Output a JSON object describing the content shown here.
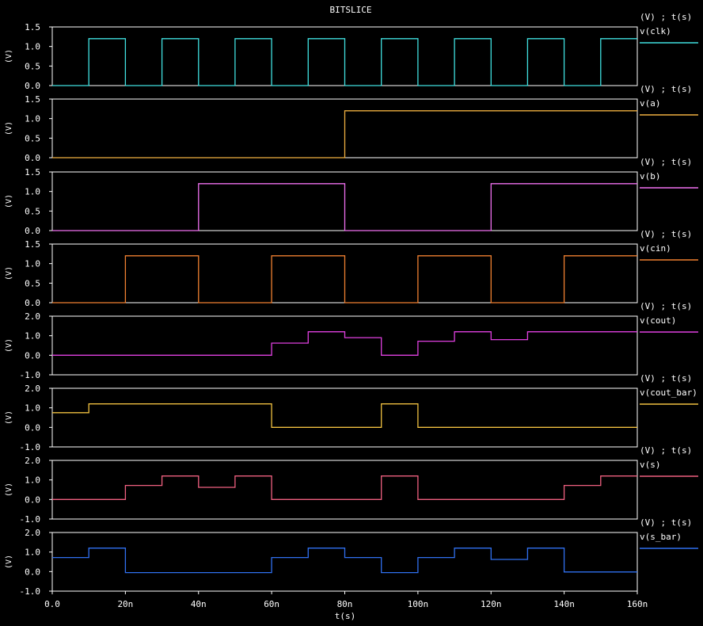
{
  "title": "BITSLICE",
  "x_axis_label": "t(s)",
  "chart_data": {
    "type": "line",
    "title": "BITSLICE",
    "xlabel": "t(s)",
    "xlim": [
      0,
      160
    ],
    "x_ticks": [
      0,
      20,
      40,
      60,
      80,
      100,
      120,
      140,
      160
    ],
    "x_tick_labels": [
      "0.0",
      "20n",
      "40n",
      "60n",
      "80n",
      "100n",
      "120n",
      "140n",
      "160n"
    ],
    "grid": false,
    "legend_position": "right",
    "panels": [
      {
        "name": "v(clk)",
        "color": "#40e0e0",
        "units": "(V) ; t(s)",
        "ylabel": "(V)",
        "ylim": [
          0,
          1.5
        ],
        "yticks": [
          0,
          0.5,
          1.0,
          1.5
        ],
        "ytick_labels": [
          "0.0",
          "0.5",
          "1.0",
          "1.5"
        ],
        "x": [
          0,
          10,
          10,
          20,
          20,
          30,
          30,
          40,
          40,
          50,
          50,
          60,
          60,
          70,
          70,
          80,
          80,
          90,
          90,
          100,
          100,
          110,
          110,
          120,
          120,
          130,
          130,
          140,
          140,
          150,
          150,
          160
        ],
        "y": [
          0,
          0,
          1.2,
          1.2,
          0,
          0,
          1.2,
          1.2,
          0,
          0,
          1.2,
          1.2,
          0,
          0,
          1.2,
          1.2,
          0,
          0,
          1.2,
          1.2,
          0,
          0,
          1.2,
          1.2,
          0,
          0,
          1.2,
          1.2,
          0,
          0,
          1.2,
          1.2
        ]
      },
      {
        "name": "v(a)",
        "color": "#f0b040",
        "units": "(V) ; t(s)",
        "ylabel": "(V)",
        "ylim": [
          0,
          1.5
        ],
        "yticks": [
          0,
          0.5,
          1.0,
          1.5
        ],
        "ytick_labels": [
          "0.0",
          "0.5",
          "1.0",
          "1.5"
        ],
        "x": [
          0,
          80,
          80,
          160
        ],
        "y": [
          0,
          0,
          1.2,
          1.2
        ]
      },
      {
        "name": "v(b)",
        "color": "#f070f0",
        "units": "(V) ; t(s)",
        "ylabel": "(V)",
        "ylim": [
          0,
          1.5
        ],
        "yticks": [
          0,
          0.5,
          1.0,
          1.5
        ],
        "ytick_labels": [
          "0.0",
          "0.5",
          "1.0",
          "1.5"
        ],
        "x": [
          0,
          40,
          40,
          80,
          80,
          120,
          120,
          160
        ],
        "y": [
          0,
          0,
          1.2,
          1.2,
          0,
          0,
          1.2,
          1.2
        ]
      },
      {
        "name": "v(cin)",
        "color": "#f08030",
        "units": "(V) ; t(s)",
        "ylabel": "(V)",
        "ylim": [
          0,
          1.5
        ],
        "yticks": [
          0,
          0.5,
          1.0,
          1.5
        ],
        "ytick_labels": [
          "0.0",
          "0.5",
          "1.0",
          "1.5"
        ],
        "x": [
          0,
          20,
          20,
          40,
          40,
          60,
          60,
          80,
          80,
          100,
          100,
          120,
          120,
          140,
          140,
          160
        ],
        "y": [
          0,
          0,
          1.2,
          1.2,
          0,
          0,
          1.2,
          1.2,
          0,
          0,
          1.2,
          1.2,
          0,
          0,
          1.2,
          1.2
        ]
      },
      {
        "name": "v(cout)",
        "color": "#e040e0",
        "units": "(V) ; t(s)",
        "ylabel": "(V)",
        "ylim": [
          -1,
          2
        ],
        "yticks": [
          -1,
          0,
          1,
          2
        ],
        "ytick_labels": [
          "-1.0",
          "0.0",
          "1.0",
          "2.0"
        ],
        "x": [
          0,
          60,
          60,
          70,
          70,
          80,
          80,
          90,
          90,
          100,
          100,
          110,
          110,
          120,
          120,
          130,
          130,
          160
        ],
        "y": [
          0,
          0,
          0.62,
          0.62,
          1.2,
          1.2,
          0.9,
          0.9,
          0,
          0,
          0.72,
          0.72,
          1.2,
          1.2,
          0.8,
          0.8,
          1.2,
          1.2
        ]
      },
      {
        "name": "v(cout_bar)",
        "color": "#f0c040",
        "units": "(V) ; t(s)",
        "ylabel": "(V)",
        "ylim": [
          -1,
          2
        ],
        "yticks": [
          -1,
          0,
          1,
          2
        ],
        "ytick_labels": [
          "-1.0",
          "0.0",
          "1.0",
          "2.0"
        ],
        "x": [
          0,
          10,
          10,
          60,
          60,
          90,
          90,
          100,
          100,
          160
        ],
        "y": [
          0.75,
          0.75,
          1.2,
          1.2,
          0,
          0,
          1.2,
          1.2,
          0,
          0
        ]
      },
      {
        "name": "v(s)",
        "color": "#f06080",
        "units": "(V) ; t(s)",
        "ylabel": "(V)",
        "ylim": [
          -1,
          2
        ],
        "yticks": [
          -1,
          0,
          1,
          2
        ],
        "ytick_labels": [
          "-1.0",
          "0.0",
          "1.0",
          "2.0"
        ],
        "x": [
          0,
          20,
          20,
          30,
          30,
          40,
          40,
          50,
          50,
          60,
          60,
          90,
          90,
          100,
          100,
          140,
          140,
          150,
          150,
          160
        ],
        "y": [
          0,
          0,
          0.72,
          0.72,
          1.2,
          1.2,
          0.62,
          0.62,
          1.2,
          1.2,
          0,
          0,
          1.2,
          1.2,
          0,
          0,
          0.72,
          0.72,
          1.2,
          1.2
        ]
      },
      {
        "name": "v(s_bar)",
        "color": "#3070f0",
        "units": "(V) ; t(s)",
        "ylabel": "(V)",
        "ylim": [
          -1,
          2
        ],
        "yticks": [
          -1,
          0,
          1,
          2
        ],
        "ytick_labels": [
          "-1.0",
          "0.0",
          "1.0",
          "2.0"
        ],
        "x": [
          0,
          10,
          10,
          20,
          20,
          60,
          60,
          70,
          70,
          80,
          80,
          90,
          90,
          100,
          100,
          110,
          110,
          120,
          120,
          130,
          130,
          140,
          140,
          160
        ],
        "y": [
          0.72,
          0.72,
          1.2,
          1.2,
          -0.05,
          -0.05,
          0.72,
          0.72,
          1.2,
          1.2,
          0.72,
          0.72,
          -0.05,
          -0.05,
          0.72,
          0.72,
          1.2,
          1.2,
          0.62,
          0.62,
          1.2,
          1.2,
          -0.02,
          -0.02
        ]
      }
    ]
  }
}
